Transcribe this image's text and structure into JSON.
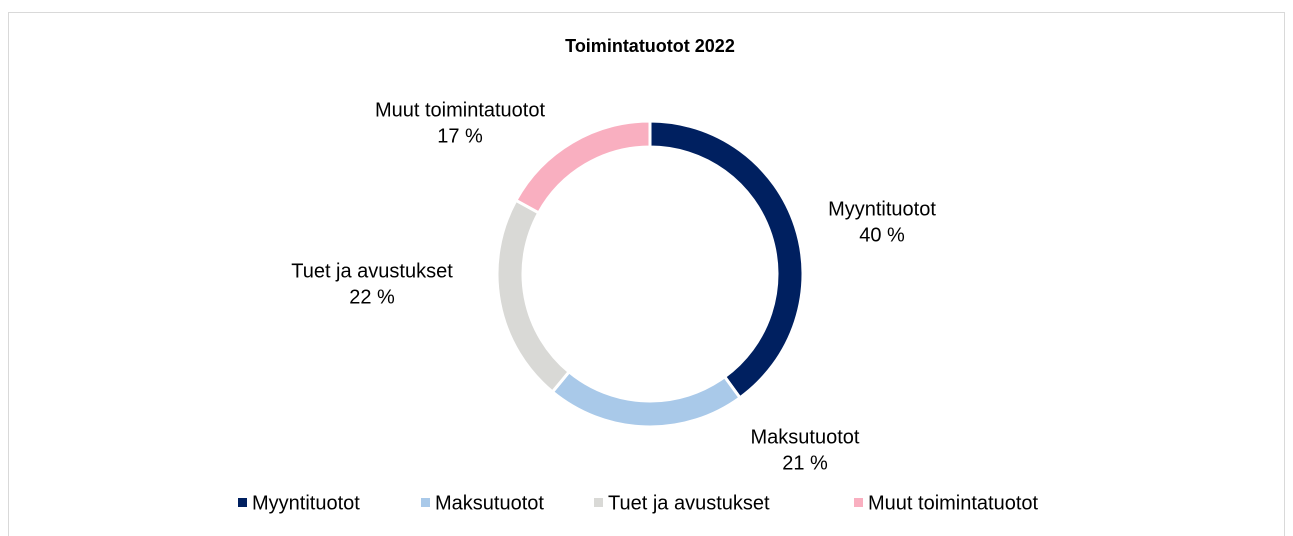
{
  "chart_data": {
    "type": "donut",
    "title": "Toimintatuotot 2022",
    "categories": [
      "Myyntituotot",
      "Maksutuotot",
      "Tuet ja avustukset",
      "Muut toimintatuotot"
    ],
    "values": [
      40,
      21,
      22,
      17
    ],
    "value_labels": [
      "40 %",
      "21 %",
      "22 %",
      "17 %"
    ],
    "colors": [
      "#002060",
      "#a9c9e9",
      "#d9d9d6",
      "#f9afc0"
    ],
    "legend": "bottom"
  }
}
